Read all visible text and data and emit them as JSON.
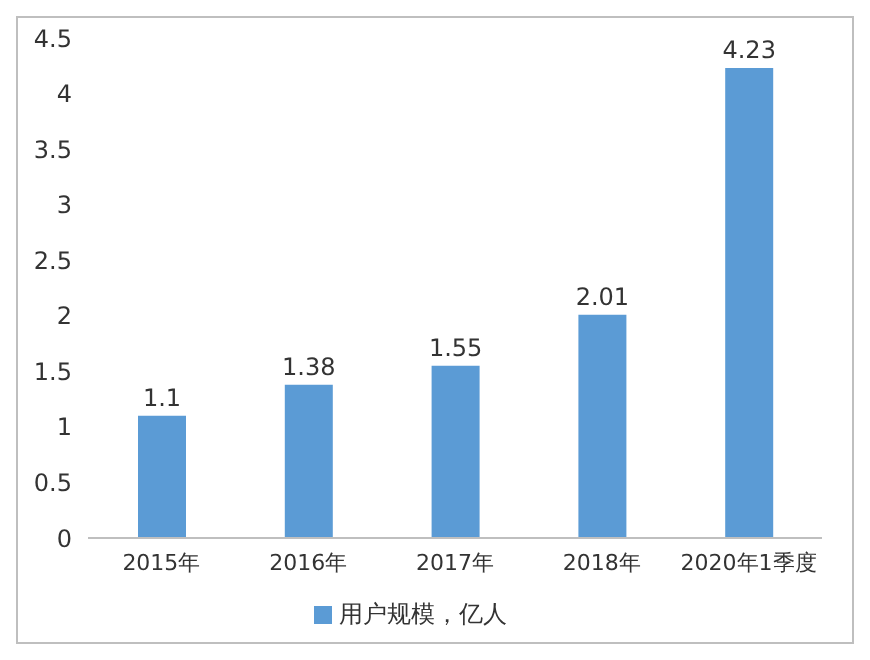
{
  "chart_data": {
    "type": "bar",
    "categories": [
      "2015年",
      "2016年",
      "2017年",
      "2018年",
      "2020年1季度"
    ],
    "series": [
      {
        "name": "用户规模，亿人",
        "color": "#5b9bd5",
        "values": [
          1.1,
          1.38,
          1.55,
          2.01,
          4.23
        ]
      }
    ],
    "ylim": [
      0,
      4.5
    ],
    "yticks": [
      0,
      0.5,
      1,
      1.5,
      2,
      2.5,
      3,
      3.5,
      4,
      4.5
    ],
    "grid": false,
    "legend": "bottom",
    "data_labels": true
  }
}
